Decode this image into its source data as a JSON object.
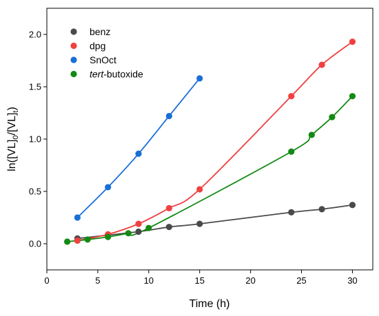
{
  "chart_data": {
    "type": "line",
    "title": "",
    "xlabel": "Time (h)",
    "ylabel": "ln([VL]0/[VL]t)",
    "ylabel_parts": {
      "main": "ln([VL]",
      "sub0": "0",
      "mid": "/[VL]",
      "subt": "t",
      "end": ")"
    },
    "xlim": [
      0,
      32
    ],
    "ylim": [
      -0.25,
      2.25
    ],
    "xticks": [
      0,
      5,
      10,
      15,
      20,
      25,
      30
    ],
    "yticks": [
      0.0,
      0.5,
      1.0,
      1.5,
      2.0
    ],
    "ytick_labels": [
      "0.0",
      "0.5",
      "1.0",
      "1.5",
      "2.0"
    ],
    "grid": false,
    "legend_position": "top-left",
    "series": [
      {
        "name": "benz",
        "color": "#4a4a4a",
        "x": [
          3,
          9,
          12,
          15,
          24,
          27,
          30
        ],
        "y": [
          0.05,
          0.115,
          0.16,
          0.19,
          0.3,
          0.33,
          0.37
        ]
      },
      {
        "name": "dpg",
        "color": "#f04040",
        "x": [
          3,
          6,
          9,
          12,
          15,
          24,
          27,
          30
        ],
        "y": [
          0.03,
          0.09,
          0.19,
          0.34,
          0.52,
          1.41,
          1.71,
          1.93
        ]
      },
      {
        "name": "SnOct",
        "color": "#1a6fd6",
        "x": [
          3,
          6,
          9,
          12,
          15
        ],
        "y": [
          0.25,
          0.54,
          0.86,
          1.22,
          1.58
        ]
      },
      {
        "name": "tert-butoxide",
        "name_italic_part": "tert",
        "name_rest": "-butoxide",
        "color": "#138a13",
        "x": [
          2,
          4,
          6,
          8,
          10,
          24,
          26,
          28,
          30
        ],
        "y": [
          0.02,
          0.04,
          0.065,
          0.1,
          0.15,
          0.88,
          1.04,
          1.21,
          1.41
        ]
      }
    ]
  }
}
